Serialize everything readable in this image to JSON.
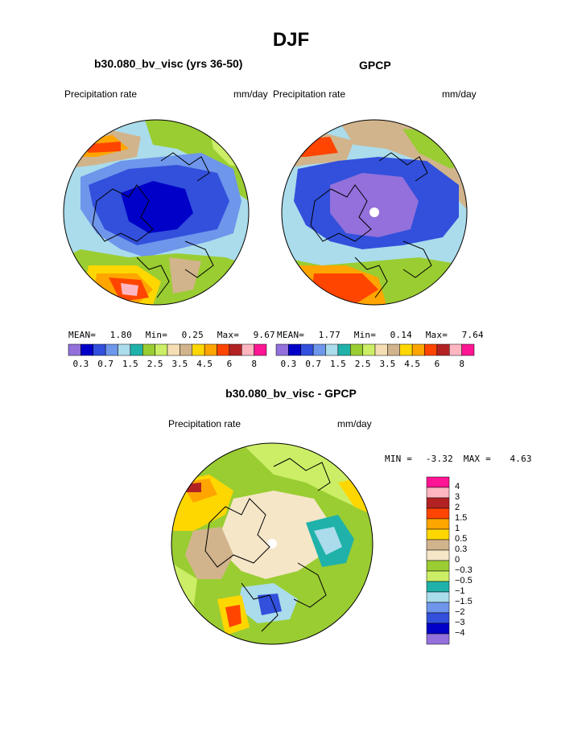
{
  "title": "DJF",
  "colors": {
    "precip_scale": [
      "#9370db",
      "#0000c8",
      "#3250dc",
      "#6e96eb",
      "#aadcec",
      "#20b2aa",
      "#9acd32",
      "#ccee66",
      "#f5deb3",
      "#d2b48c",
      "#ffd700",
      "#ffa500",
      "#ff4500",
      "#b22222",
      "#ffb6c1",
      "#ff1493"
    ],
    "diff_scale": [
      "#9370db",
      "#0000c8",
      "#3250dc",
      "#6e96eb",
      "#aadcec",
      "#20b2aa",
      "#ccee66",
      "#9acd32",
      "#f5e6c8",
      "#d2b48c",
      "#ffd700",
      "#ffa500",
      "#ff4500",
      "#b22222",
      "#ffb6c1",
      "#ff1493"
    ]
  },
  "panels": {
    "model": {
      "title": "b30.080_bv_visc (yrs 36-50)",
      "left_label": "Precipitation rate",
      "right_label": "mm/day",
      "mean_label": "MEAN=",
      "mean": "1.80",
      "min_label": "Min=",
      "min": "0.25",
      "max_label": "Max=",
      "max": "9.67",
      "tick_labels": [
        "0.3",
        "0.7",
        "1.5",
        "2.5",
        "3.5",
        "4.5",
        "6",
        "8"
      ]
    },
    "obs": {
      "title": "GPCP",
      "left_label": "Precipitation rate",
      "right_label": "mm/day",
      "mean_label": "MEAN=",
      "mean": "1.77",
      "min_label": "Min=",
      "min": "0.14",
      "max_label": "Max=",
      "max": "7.64",
      "tick_labels": [
        "0.3",
        "0.7",
        "1.5",
        "2.5",
        "3.5",
        "4.5",
        "6",
        "8"
      ]
    },
    "diff": {
      "title": "b30.080_bv_visc - GPCP",
      "left_label": "Precipitation rate",
      "right_label": "mm/day",
      "min_label": "MIN =",
      "min": "-3.32",
      "max_label": "MAX =",
      "max": "4.63",
      "tick_labels": [
        "4",
        "3",
        "2",
        "1.5",
        "1",
        "0.5",
        "0.3",
        "0",
        "−0.3",
        "−0.5",
        "−1",
        "−1.5",
        "−2",
        "−3",
        "−4"
      ]
    }
  }
}
